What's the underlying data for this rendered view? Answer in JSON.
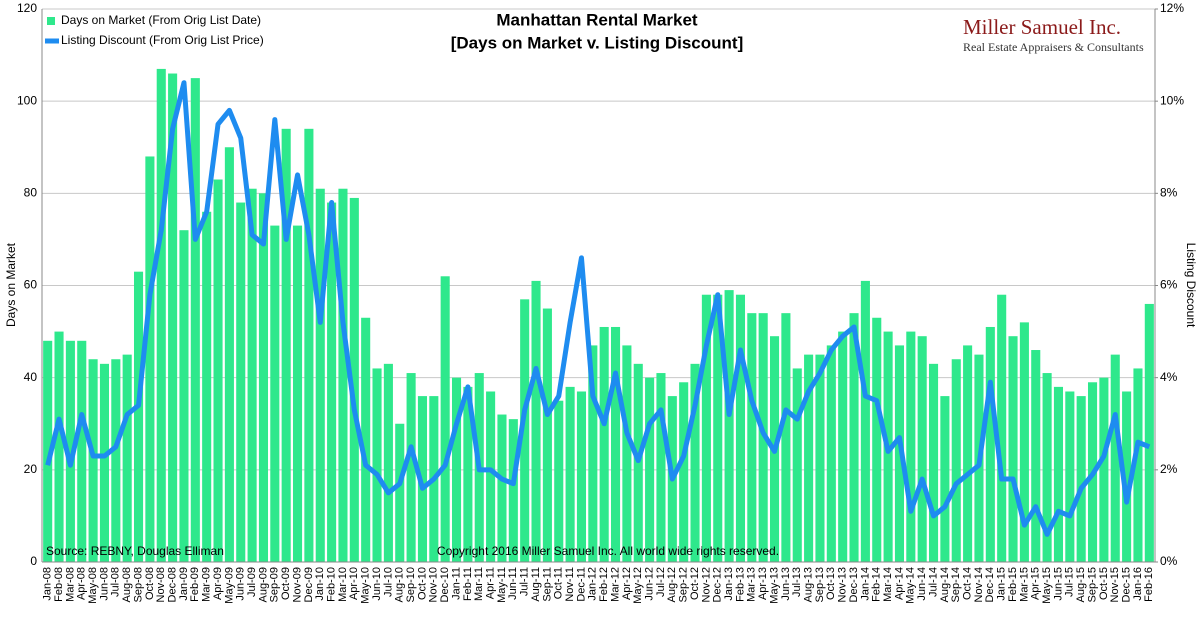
{
  "chart_data": {
    "type": "combo",
    "title": "Manhattan Rental Market",
    "subtitle": "[Days on Market v. Listing Discount]",
    "y_label": "Days on Market",
    "y2_label": "Listing Discount",
    "brand": "Miller Samuel Inc.",
    "brand_tagline": "Real Estate Appraisers & Consultants",
    "source": "Source: REBNY, Douglas Elliman",
    "copyright": "Copyright 2016 Miller Samuel Inc.  All world wide rights reserved.",
    "categories": [
      "Jan-08",
      "Feb-08",
      "Mar-08",
      "Apr-08",
      "May-08",
      "Jun-08",
      "Jul-08",
      "Aug-08",
      "Sep-08",
      "Oct-08",
      "Nov-08",
      "Dec-08",
      "Jan-09",
      "Feb-09",
      "Mar-09",
      "Apr-09",
      "May-09",
      "Jun-09",
      "Jul-09",
      "Aug-09",
      "Sep-09",
      "Oct-09",
      "Nov-09",
      "Dec-09",
      "Jan-10",
      "Feb-10",
      "Mar-10",
      "Apr-10",
      "May-10",
      "Jun-10",
      "Jul-10",
      "Aug-10",
      "Sep-10",
      "Oct-10",
      "Nov-10",
      "Dec-10",
      "Jan-11",
      "Feb-11",
      "Mar-11",
      "Apr-11",
      "May-11",
      "Jun-11",
      "Jul-11",
      "Aug-11",
      "Sep-11",
      "Oct-11",
      "Nov-11",
      "Dec-11",
      "Jan-12",
      "Feb-12",
      "Mar-12",
      "Apr-12",
      "May-12",
      "Jun-12",
      "Jul-12",
      "Aug-12",
      "Sep-12",
      "Oct-12",
      "Nov-12",
      "Dec-12",
      "Jan-13",
      "Feb-13",
      "Mar-13",
      "Apr-13",
      "May-13",
      "Jun-13",
      "Jul-13",
      "Aug-13",
      "Sep-13",
      "Oct-13",
      "Nov-13",
      "Dec-13",
      "Jan-14",
      "Feb-14",
      "Mar-14",
      "Apr-14",
      "May-14",
      "Jun-14",
      "Jul-14",
      "Aug-14",
      "Sep-14",
      "Oct-14",
      "Nov-14",
      "Dec-14",
      "Jan-15",
      "Feb-15",
      "Mar-15",
      "Apr-15",
      "May-15",
      "Jun-15",
      "Jul-15",
      "Aug-15",
      "Sep-15",
      "Oct-15",
      "Nov-15",
      "Dec-15",
      "Jan-16",
      "Feb-16"
    ],
    "series": [
      {
        "name": "Days on Market (From Orig List Date)",
        "type": "bar",
        "color": "#2ee88c",
        "values": [
          48,
          50,
          48,
          48,
          44,
          43,
          44,
          45,
          63,
          88,
          107,
          106,
          72,
          105,
          76,
          83,
          90,
          78,
          81,
          80,
          73,
          94,
          73,
          94,
          81,
          78,
          81,
          79,
          53,
          42,
          43,
          30,
          41,
          36,
          36,
          62,
          40,
          38,
          41,
          37,
          32,
          31,
          57,
          61,
          55,
          35,
          38,
          37,
          47,
          51,
          51,
          47,
          43,
          40,
          41,
          36,
          39,
          43,
          58,
          58,
          59,
          58,
          54,
          54,
          49,
          54,
          42,
          45,
          45,
          47,
          50,
          54,
          61,
          53,
          50,
          47,
          50,
          49,
          43,
          36,
          44,
          47,
          45,
          51,
          58,
          49,
          52,
          46,
          41,
          38,
          37,
          36,
          39,
          40,
          45,
          37,
          42,
          56
        ]
      },
      {
        "name": "Listing Discount (From Orig List Price)",
        "type": "line",
        "axis": "y2",
        "color": "#1e8cf0",
        "values": [
          2.1,
          3.1,
          2.1,
          3.2,
          2.3,
          2.3,
          2.5,
          3.2,
          3.4,
          5.8,
          7.2,
          9.4,
          10.4,
          7.0,
          7.6,
          9.5,
          9.8,
          9.2,
          7.1,
          6.9,
          9.6,
          7.0,
          8.4,
          7.1,
          5.2,
          7.8,
          5.2,
          3.3,
          2.1,
          1.9,
          1.5,
          1.7,
          2.5,
          1.6,
          1.8,
          2.1,
          3.0,
          3.8,
          2.0,
          2.0,
          1.8,
          1.7,
          3.3,
          4.2,
          3.2,
          3.6,
          5.2,
          6.6,
          3.6,
          3.0,
          4.1,
          2.8,
          2.2,
          3.0,
          3.3,
          1.8,
          2.3,
          3.4,
          4.7,
          5.8,
          3.2,
          4.6,
          3.5,
          2.8,
          2.4,
          3.3,
          3.1,
          3.7,
          4.1,
          4.6,
          4.9,
          5.1,
          3.6,
          3.5,
          2.4,
          2.7,
          1.1,
          1.8,
          1.0,
          1.2,
          1.7,
          1.9,
          2.1,
          3.9,
          1.8,
          1.8,
          0.8,
          1.2,
          0.6,
          1.1,
          1.0,
          1.6,
          1.9,
          2.3,
          3.2,
          1.3,
          2.6,
          2.5
        ]
      }
    ],
    "ylim": [
      0,
      120
    ],
    "yticks": [
      0,
      20,
      40,
      60,
      80,
      100,
      120
    ],
    "y2lim": [
      0,
      12
    ],
    "y2ticks": [
      {
        "value": 0,
        "label": "0%"
      },
      {
        "value": 2,
        "label": "2%"
      },
      {
        "value": 4,
        "label": "4%"
      },
      {
        "value": 6,
        "label": "6%"
      },
      {
        "value": 8,
        "label": "8%"
      },
      {
        "value": 10,
        "label": "10%"
      },
      {
        "value": 12,
        "label": "12%"
      }
    ],
    "grid": true,
    "legend": "top-left"
  }
}
